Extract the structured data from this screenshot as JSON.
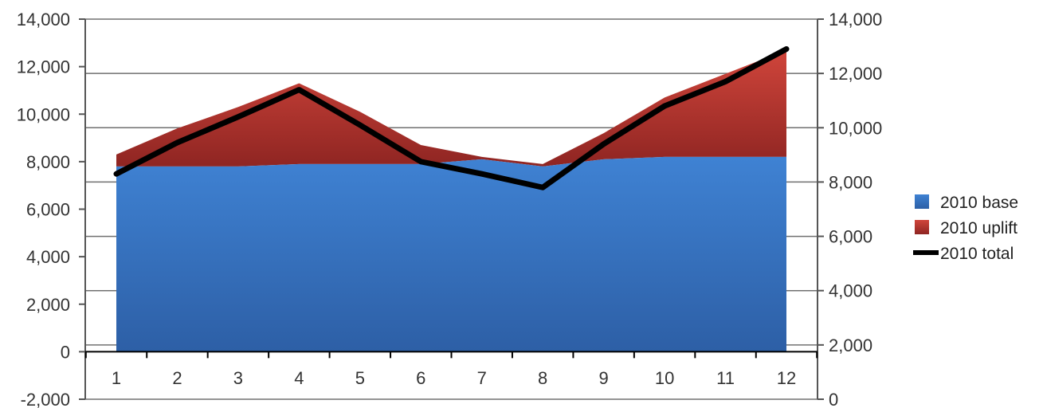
{
  "chart_data": {
    "type": "area",
    "title": "",
    "xlabel": "",
    "ylabel": "",
    "categories": [
      "1",
      "2",
      "3",
      "4",
      "5",
      "6",
      "7",
      "8",
      "9",
      "10",
      "11",
      "12"
    ],
    "series": [
      {
        "name": "2010 base",
        "kind": "area",
        "axis": "left",
        "color": "#3a78c6",
        "values": [
          7800,
          7800,
          7800,
          7900,
          7900,
          7900,
          8100,
          7800,
          8100,
          8200,
          8200,
          8200
        ]
      },
      {
        "name": "2010 uplift",
        "kind": "stacked-area",
        "axis": "left",
        "color": "#c43a32",
        "values": [
          500,
          1600,
          2500,
          3400,
          2200,
          800,
          100,
          100,
          1100,
          2500,
          3500,
          4500
        ]
      },
      {
        "name": "2010 total",
        "kind": "line",
        "axis": "right",
        "color": "#000000",
        "values": [
          8300,
          9450,
          10400,
          11400,
          10100,
          8750,
          8300,
          7800,
          9400,
          10800,
          11700,
          12900
        ]
      }
    ],
    "y_left": {
      "min": -2000,
      "max": 14000,
      "ticks": [
        "-2,000",
        "0",
        "2,000",
        "4,000",
        "6,000",
        "8,000",
        "10,000",
        "12,000",
        "14,000"
      ]
    },
    "y_right": {
      "min": 0,
      "max": 14000,
      "ticks": [
        "0",
        "2,000",
        "4,000",
        "6,000",
        "8,000",
        "10,000",
        "12,000",
        "14,000"
      ]
    },
    "grid": true,
    "legend": "right"
  }
}
